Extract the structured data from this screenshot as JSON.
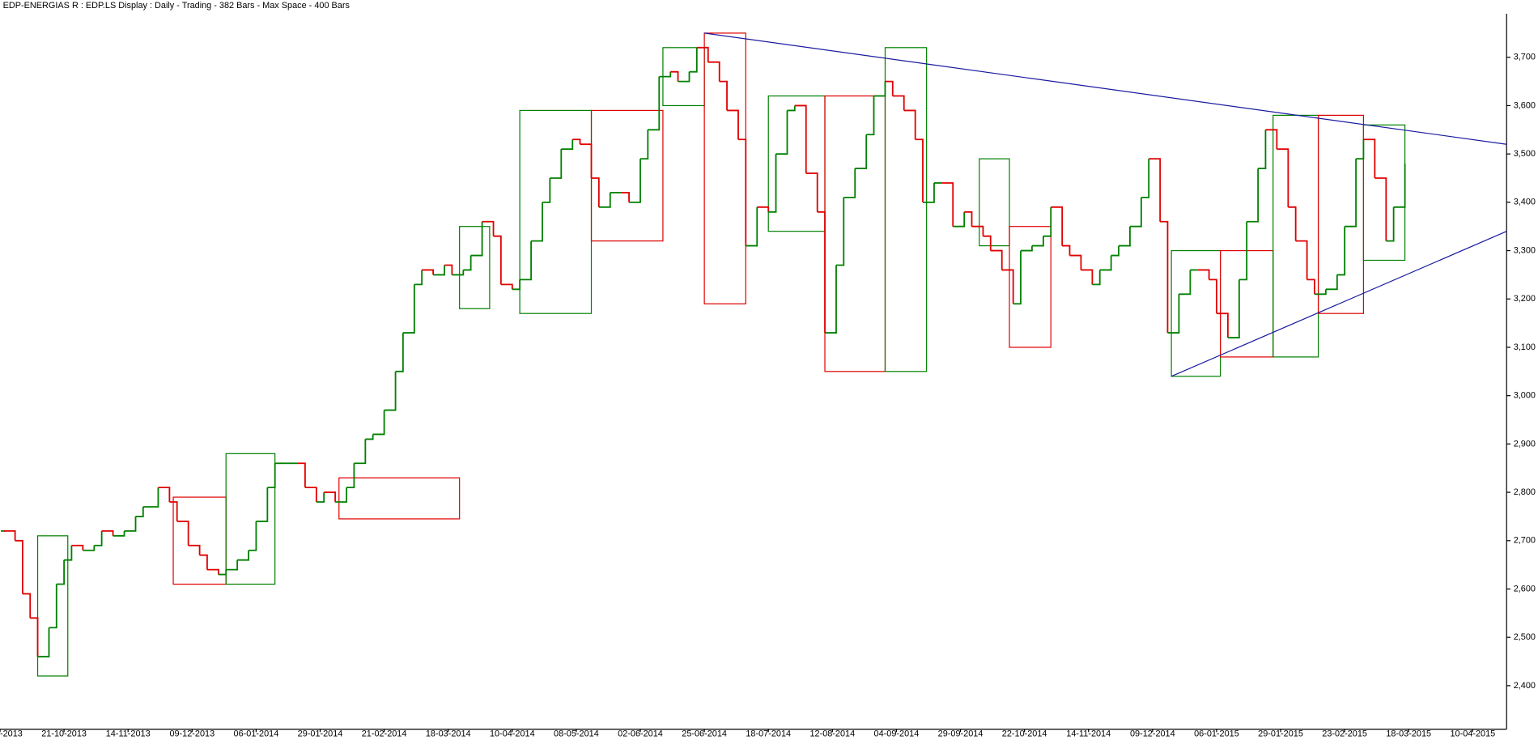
{
  "chart_data": {
    "type": "step",
    "title": "EDP-ENERGIAS R : EDP.LS Display :  Daily  - Trading - 382 Bars -  Max Space - 400 Bars",
    "x": [
      1,
      4,
      6,
      8,
      10,
      13,
      15,
      17,
      19,
      22,
      25,
      27,
      30,
      33,
      36,
      38,
      42,
      45,
      47,
      50,
      53,
      55,
      58,
      60,
      63,
      66,
      68,
      71,
      73,
      76,
      79,
      81,
      84,
      86,
      89,
      92,
      94,
      97,
      99,
      102,
      105,
      107,
      110,
      112,
      115,
      118,
      120,
      123,
      125,
      128,
      131,
      133,
      136,
      138,
      141,
      144,
      146,
      149,
      152,
      154,
      157,
      159,
      162,
      165,
      167,
      170,
      172,
      175,
      178,
      180,
      183,
      185,
      188,
      191,
      193,
      196,
      198,
      201,
      204,
      206,
      209,
      211,
      214,
      217,
      219,
      222,
      224,
      227,
      230,
      232,
      235,
      237,
      240,
      243,
      245,
      248,
      250,
      253,
      256,
      258,
      261,
      263,
      266,
      269,
      271,
      274,
      277,
      279,
      282,
      284,
      287,
      290,
      292,
      295,
      297,
      300,
      303,
      305,
      308,
      310,
      313,
      316,
      318,
      321,
      323,
      326,
      329,
      331,
      334,
      336,
      339,
      342,
      344,
      347,
      349,
      352,
      355,
      357,
      360,
      362,
      365,
      368,
      370,
      373
    ],
    "series": [
      {
        "values": [
          2.72,
          2.7,
          2.59,
          2.54,
          2.46,
          2.52,
          2.61,
          2.66,
          2.69,
          2.68,
          2.69,
          2.72,
          2.71,
          2.72,
          2.75,
          2.77,
          2.81,
          2.78,
          2.74,
          2.69,
          2.67,
          2.64,
          2.63,
          2.64,
          2.66,
          2.68,
          2.74,
          2.81,
          2.86,
          2.86,
          2.86,
          2.81,
          2.78,
          2.8,
          2.78,
          2.81,
          2.86,
          2.91,
          2.92,
          2.97,
          3.05,
          3.13,
          3.23,
          3.26,
          3.25,
          3.27,
          3.25,
          3.26,
          3.29,
          3.36,
          3.33,
          3.23,
          3.22,
          3.24,
          3.32,
          3.4,
          3.45,
          3.51,
          3.53,
          3.52,
          3.45,
          3.39,
          3.42,
          3.42,
          3.4,
          3.49,
          3.55,
          3.66,
          3.67,
          3.65,
          3.67,
          3.72,
          3.69,
          3.65,
          3.59,
          3.53,
          3.31,
          3.39,
          3.38,
          3.5,
          3.59,
          3.6,
          3.46,
          3.38,
          3.13,
          3.27,
          3.41,
          3.47,
          3.54,
          3.62,
          3.65,
          3.62,
          3.59,
          3.53,
          3.4,
          3.44,
          3.44,
          3.35,
          3.38,
          3.35,
          3.33,
          3.3,
          3.26,
          3.19,
          3.3,
          3.31,
          3.33,
          3.39,
          3.31,
          3.29,
          3.26,
          3.23,
          3.26,
          3.29,
          3.31,
          3.35,
          3.41,
          3.49,
          3.36,
          3.13,
          3.21,
          3.26,
          3.26,
          3.24,
          3.17,
          3.12,
          3.24,
          3.36,
          3.47,
          3.55,
          3.51,
          3.39,
          3.32,
          3.24,
          3.21,
          3.22,
          3.25,
          3.35,
          3.49,
          3.53,
          3.45,
          3.32,
          3.39,
          3.48
        ]
      }
    ],
    "up_color": "#008000",
    "down_color": "#e00000",
    "boxes": [
      {
        "x0": 10,
        "x1": 18,
        "low": 2.42,
        "high": 2.71,
        "color": "#008000"
      },
      {
        "x0": 46,
        "x1": 60,
        "low": 2.61,
        "high": 2.79,
        "color": "#e00000"
      },
      {
        "x0": 60,
        "x1": 73,
        "low": 2.61,
        "high": 2.88,
        "color": "#008000"
      },
      {
        "x0": 90,
        "x1": 122,
        "low": 2.745,
        "high": 2.83,
        "color": "#e00000"
      },
      {
        "x0": 122,
        "x1": 130,
        "low": 3.18,
        "high": 3.35,
        "color": "#008000"
      },
      {
        "x0": 138,
        "x1": 157,
        "low": 3.17,
        "high": 3.59,
        "color": "#008000"
      },
      {
        "x0": 157,
        "x1": 176,
        "low": 3.32,
        "high": 3.59,
        "color": "#e00000"
      },
      {
        "x0": 176,
        "x1": 187,
        "low": 3.6,
        "high": 3.72,
        "color": "#008000"
      },
      {
        "x0": 187,
        "x1": 198,
        "low": 3.19,
        "high": 3.75,
        "color": "#e00000"
      },
      {
        "x0": 204,
        "x1": 219,
        "low": 3.34,
        "high": 3.62,
        "color": "#008000"
      },
      {
        "x0": 219,
        "x1": 235,
        "low": 3.05,
        "high": 3.62,
        "color": "#e00000"
      },
      {
        "x0": 235,
        "x1": 246,
        "low": 3.05,
        "high": 3.72,
        "color": "#008000"
      },
      {
        "x0": 260,
        "x1": 268,
        "low": 3.31,
        "high": 3.49,
        "color": "#008000"
      },
      {
        "x0": 268,
        "x1": 279,
        "low": 3.1,
        "high": 3.35,
        "color": "#e00000"
      },
      {
        "x0": 311,
        "x1": 324,
        "low": 3.04,
        "high": 3.3,
        "color": "#008000"
      },
      {
        "x0": 324,
        "x1": 338,
        "low": 3.08,
        "high": 3.3,
        "color": "#e00000"
      },
      {
        "x0": 338,
        "x1": 350,
        "low": 3.08,
        "high": 3.58,
        "color": "#008000"
      },
      {
        "x0": 350,
        "x1": 362,
        "low": 3.17,
        "high": 3.58,
        "color": "#e00000"
      },
      {
        "x0": 362,
        "x1": 373,
        "low": 3.28,
        "high": 3.56,
        "color": "#008000"
      }
    ],
    "trendlines": [
      {
        "x": [
          187,
          400
        ],
        "values": [
          3.75,
          3.52
        ],
        "color": "#1a1aa0"
      },
      {
        "x": [
          311,
          400
        ],
        "values": [
          3.04,
          3.34
        ],
        "color": "#1a1aa0"
      }
    ],
    "xlim": [
      0,
      400
    ],
    "xticks": [
      {
        "value": 0,
        "label": "-2013"
      },
      {
        "value": 17,
        "label": "21-10-2013"
      },
      {
        "value": 34,
        "label": "14-11-2013"
      },
      {
        "value": 51,
        "label": "09-12-2013"
      },
      {
        "value": 68,
        "label": "06-01-2014"
      },
      {
        "value": 85,
        "label": "29-01-2014"
      },
      {
        "value": 102,
        "label": "21-02-2014"
      },
      {
        "value": 119,
        "label": "18-03-2014"
      },
      {
        "value": 136,
        "label": "10-04-2014"
      },
      {
        "value": 153,
        "label": "08-05-2014"
      },
      {
        "value": 170,
        "label": "02-06-2014"
      },
      {
        "value": 187,
        "label": "25-06-2014"
      },
      {
        "value": 204,
        "label": "18-07-2014"
      },
      {
        "value": 221,
        "label": "12-08-2014"
      },
      {
        "value": 238,
        "label": "04-09-2014"
      },
      {
        "value": 255,
        "label": "29-09-2014"
      },
      {
        "value": 272,
        "label": "22-10-2014"
      },
      {
        "value": 289,
        "label": "14-11-2014"
      },
      {
        "value": 306,
        "label": "09-12-2014"
      },
      {
        "value": 323,
        "label": "06-01-2015"
      },
      {
        "value": 340,
        "label": "29-01-2015"
      },
      {
        "value": 357,
        "label": "23-02-2015"
      },
      {
        "value": 374,
        "label": "18-03-2015"
      },
      {
        "value": 391,
        "label": "10-04-2015"
      }
    ],
    "ylim": [
      2.31,
      3.79
    ],
    "yticks": [
      {
        "value": 2.4,
        "label": "2,400"
      },
      {
        "value": 2.5,
        "label": "2,500"
      },
      {
        "value": 2.6,
        "label": "2,600"
      },
      {
        "value": 2.7,
        "label": "2,700"
      },
      {
        "value": 2.8,
        "label": "2,800"
      },
      {
        "value": 2.9,
        "label": "2,900"
      },
      {
        "value": 3.0,
        "label": "3,000"
      },
      {
        "value": 3.1,
        "label": "3,100"
      },
      {
        "value": 3.2,
        "label": "3,200"
      },
      {
        "value": 3.3,
        "label": "3,300"
      },
      {
        "value": 3.4,
        "label": "3,400"
      },
      {
        "value": 3.5,
        "label": "3,500"
      },
      {
        "value": 3.6,
        "label": "3,600"
      },
      {
        "value": 3.7,
        "label": "3,700"
      }
    ],
    "grid": false
  }
}
